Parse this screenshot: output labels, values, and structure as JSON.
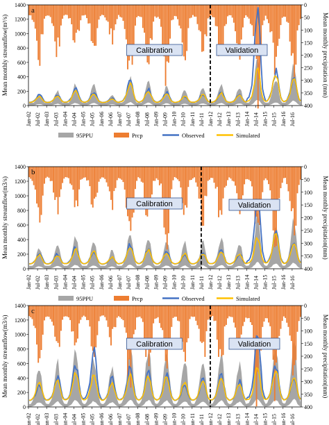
{
  "figure": {
    "panels": [
      {
        "letter": "a",
        "ylabel_left": "Mean monthly streamflow(m³/s)",
        "ylabel_right": "Mean monthly precipitation (mm)",
        "box_calibration": "Calibration",
        "box_validation": "Validation",
        "legend": [
          "95PPU",
          "Prcp",
          "Observed",
          "Simulated"
        ]
      },
      {
        "letter": "b",
        "ylabel_left": "Mean monthly streamflow(m3/s)",
        "ylabel_right": "Mean monthly precipitation(mm)",
        "box_calibration": "Calibration",
        "box_validation": "Validation",
        "legend": [
          "95PPU",
          "Prcp",
          "Observed",
          "Simulated"
        ]
      },
      {
        "letter": "c",
        "ylabel_left": "Mean monthly streamflow(m3/s)",
        "ylabel_right": "Mean monthly precipitation(mm)",
        "box_calibration": "Calibration",
        "box_validation": "Validation",
        "legend": [
          "95PPU",
          "Prcp",
          "observed",
          "Simulated"
        ]
      }
    ],
    "colors": {
      "ppu": "#a6a6a6",
      "prcp": "#ed7d31",
      "observed": "#4472c4",
      "simulated": "#ffc000",
      "box_fill": "#dae3f3",
      "box_stroke": "#2f528f"
    }
  },
  "chart_data": [
    {
      "type": "area",
      "panel": "a",
      "x_type": "monthly dates Jan-2002 to Dec-2016",
      "x_tick_labels": [
        "Jan-02",
        "Jul-02",
        "Jan-03",
        "Jul-03",
        "Jan-04",
        "Jul-04",
        "Jan-05",
        "Jul-05",
        "Jan-06",
        "Jul-06",
        "Jan-07",
        "Jul-07",
        "Jan-08",
        "Jul-08",
        "Jan-09",
        "Jul-09",
        "Jan-10",
        "Jul-10",
        "Jan-11",
        "Jul-11",
        "Jan-12",
        "Jul-12",
        "Jan-13",
        "Jul-13",
        "Jan-14",
        "Jul-14",
        "Jan-15",
        "Jul-15",
        "Jan-16",
        "Jul-16"
      ],
      "y_left": {
        "ylim": [
          0,
          1400
        ],
        "ticks": [
          0,
          200,
          400,
          600,
          800,
          1000,
          1200,
          1400
        ]
      },
      "y_right": {
        "ylim": [
          0,
          400
        ],
        "inverted": true,
        "ticks": [
          0,
          50,
          100,
          150,
          200,
          250,
          300,
          350,
          400
        ]
      },
      "split_date": "Jan-12",
      "series": [
        {
          "name": "95PPU",
          "kind": "band",
          "peaks": [
            170,
            200,
            300,
            290,
            150,
            380,
            330,
            260,
            220,
            250,
            300,
            240,
            620,
            380,
            560
          ]
        },
        {
          "name": "Prcp",
          "kind": "bars-on-inverted-axis",
          "peaks": [
            190,
            170,
            150,
            170,
            130,
            280,
            220,
            270,
            200,
            190,
            210,
            170,
            310,
            300,
            230
          ],
          "base": 35
        },
        {
          "name": "Observed",
          "kind": "line",
          "peaks": [
            150,
            140,
            230,
            180,
            100,
            330,
            220,
            180,
            120,
            160,
            180,
            150,
            1230,
            460,
            380
          ],
          "base": 40
        },
        {
          "name": "Simulated",
          "kind": "line",
          "peaks": [
            120,
            130,
            200,
            160,
            90,
            300,
            200,
            160,
            130,
            150,
            170,
            140,
            480,
            430,
            350
          ],
          "base": 40
        }
      ]
    },
    {
      "type": "area",
      "panel": "b",
      "x_type": "monthly dates Jan-2002 to Dec-2016",
      "x_tick_labels": [
        "Jan-02",
        "Jul-02",
        "Jan-03",
        "Jul-03",
        "Jan-04",
        "Jul-04",
        "Jan-05",
        "Jul-05",
        "Jan-06",
        "Jul-06",
        "Jan-07",
        "Jul-07",
        "Jan-08",
        "Jul-08",
        "Jan-09",
        "Jul-09",
        "Jan-10",
        "Jul-10",
        "Jan-11",
        "Jul-11",
        "Jan-12",
        "Jul-12",
        "Jan-13",
        "Jul-13",
        "Jan-14",
        "Jul-14",
        "Jan-15",
        "Jul-15",
        "Jan-16",
        "Jul-16"
      ],
      "y_left": {
        "ylim": [
          0,
          1400
        ],
        "ticks": [
          0,
          200,
          400,
          600,
          800,
          1000,
          1200,
          1400
        ]
      },
      "y_right": {
        "ylim": [
          0,
          400
        ],
        "inverted": true,
        "ticks": [
          0,
          50,
          100,
          150,
          200,
          250,
          300,
          350,
          400
        ]
      },
      "split_date": "Jul-11",
      "series": [
        {
          "name": "95PPU",
          "kind": "band",
          "peaks": [
            280,
            330,
            430,
            360,
            260,
            500,
            420,
            380,
            360,
            370,
            420,
            360,
            720,
            580,
            700
          ]
        },
        {
          "name": "Prcp",
          "kind": "bars-on-inverted-axis",
          "peaks": [
            185,
            165,
            155,
            165,
            135,
            275,
            225,
            265,
            195,
            195,
            205,
            175,
            300,
            290,
            235
          ],
          "base": 35
        },
        {
          "name": "Observed",
          "kind": "line",
          "peaks": [
            210,
            200,
            300,
            240,
            150,
            330,
            280,
            230,
            180,
            220,
            250,
            200,
            1000,
            520,
            360
          ],
          "base": 60
        },
        {
          "name": "Simulated",
          "kind": "line",
          "peaks": [
            190,
            180,
            260,
            230,
            160,
            300,
            260,
            220,
            200,
            210,
            240,
            200,
            420,
            470,
            330
          ],
          "base": 60
        }
      ]
    },
    {
      "type": "area",
      "panel": "c",
      "x_type": "monthly dates Jan-2002 to Dec-2016",
      "x_tick_labels": [
        "Jan-02",
        "Jul-02",
        "Jan-03",
        "Jul-03",
        "Jan-04",
        "Jul-04",
        "Jan-05",
        "Jul-05",
        "Jan-06",
        "Jul-06",
        "Jan-07",
        "Jul-07",
        "Jan-08",
        "Jul-08",
        "Jan-09",
        "Jul-09",
        "Jan-10",
        "Jul-10",
        "Jan-11",
        "Jul-11",
        "Jan-12",
        "Jul-12",
        "Jan-13",
        "Jul-13",
        "Jan-14",
        "Jul-14",
        "Jan-15",
        "Jul-15",
        "Jan-16",
        "Jul-16"
      ],
      "y_left": {
        "ylim": [
          0,
          1400
        ],
        "ticks": [
          0,
          200,
          400,
          600,
          800,
          1000,
          1200,
          1400
        ]
      },
      "y_right": {
        "ylim": [
          0,
          400
        ],
        "inverted": true,
        "ticks": [
          0,
          50,
          100,
          150,
          200,
          250,
          300,
          350,
          400
        ]
      },
      "split_date": "Jan-12",
      "series": [
        {
          "name": "95PPU",
          "kind": "band",
          "peaks": [
            560,
            600,
            760,
            660,
            560,
            820,
            780,
            740,
            640,
            680,
            760,
            600,
            960,
            820,
            860
          ]
        },
        {
          "name": "Prcp",
          "kind": "bars-on-inverted-axis",
          "peaks": [
            190,
            170,
            150,
            170,
            130,
            280,
            220,
            270,
            200,
            190,
            210,
            170,
            310,
            300,
            230
          ],
          "base": 35
        },
        {
          "name": "observed",
          "kind": "line",
          "peaks": [
            300,
            420,
            560,
            770,
            380,
            540,
            460,
            420,
            300,
            380,
            440,
            340,
            1050,
            580,
            420
          ],
          "base": 80
        },
        {
          "name": "Simulated",
          "kind": "line",
          "peaks": [
            330,
            360,
            470,
            430,
            320,
            460,
            420,
            400,
            340,
            360,
            420,
            330,
            540,
            520,
            400
          ],
          "base": 80
        }
      ]
    }
  ]
}
